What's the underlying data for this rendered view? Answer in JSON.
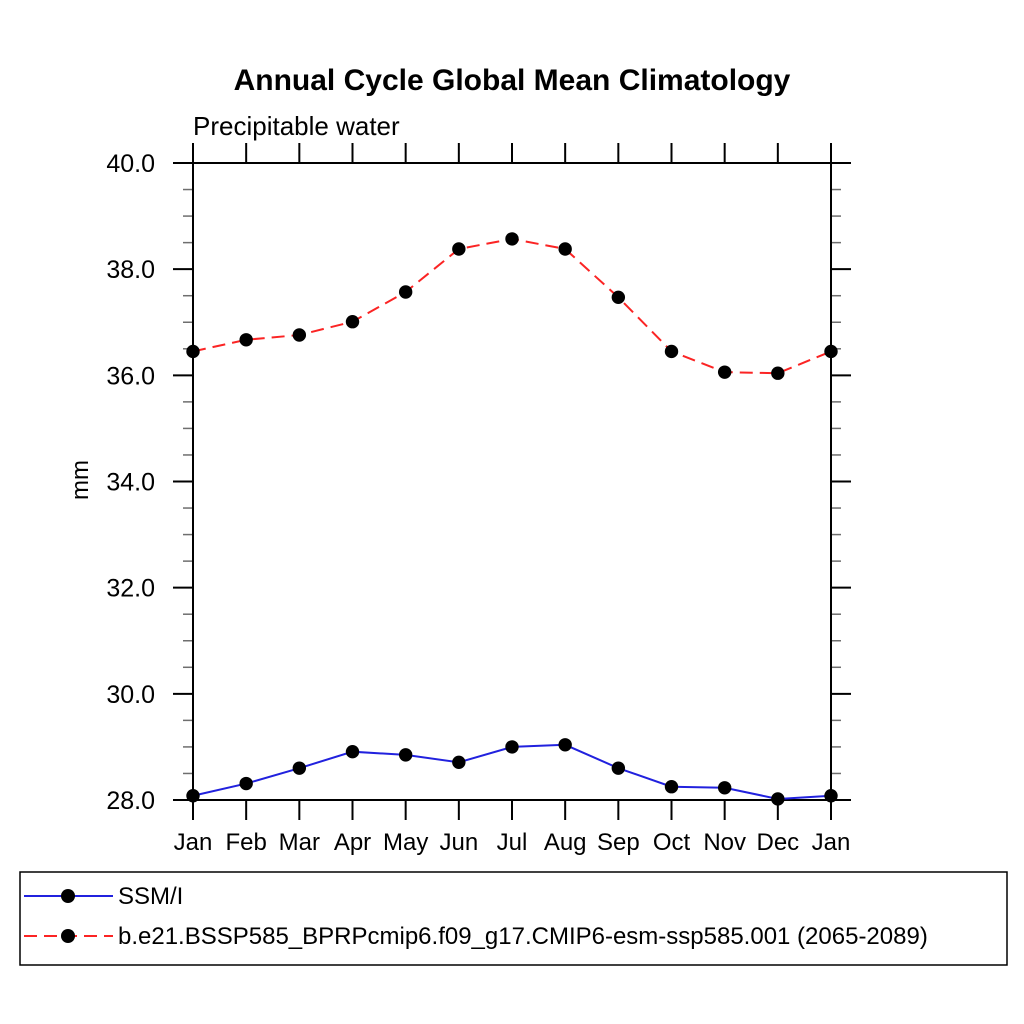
{
  "chart_data": {
    "type": "line",
    "title": "Annual Cycle Global Mean Climatology",
    "subtitle": "Precipitable water",
    "ylabel": "mm",
    "xlabel": "",
    "categories": [
      "Jan",
      "Feb",
      "Mar",
      "Apr",
      "May",
      "Jun",
      "Jul",
      "Aug",
      "Sep",
      "Oct",
      "Nov",
      "Dec",
      "Jan"
    ],
    "ylim": [
      28.0,
      40.0
    ],
    "ytick_step": 2.0,
    "ytick_minor_step": 0.5,
    "ytick_labels": [
      "28.0",
      "30.0",
      "32.0",
      "34.0",
      "36.0",
      "38.0",
      "40.0"
    ],
    "grid": false,
    "legend_position": "bottom",
    "colors": {
      "axis": "#000000",
      "minor_tick": "#6e6e6e",
      "marker": "#000000"
    },
    "series": [
      {
        "name": "SSM/I",
        "color": "#2121de",
        "line_style": "solid",
        "marker": "circle",
        "values": [
          28.08,
          28.31,
          28.6,
          28.91,
          28.85,
          28.71,
          29.0,
          29.04,
          28.6,
          28.25,
          28.23,
          28.02,
          28.08
        ]
      },
      {
        "name": "b.e21.BSSP585_BPRPcmip6.f09_g17.CMIP6-esm-ssp585.001 (2065-2089)",
        "color": "#fb2424",
        "line_style": "dashed",
        "marker": "circle",
        "values": [
          36.45,
          36.67,
          36.76,
          37.01,
          37.57,
          38.38,
          38.57,
          38.38,
          37.47,
          36.45,
          36.06,
          36.04,
          36.45
        ]
      }
    ]
  }
}
